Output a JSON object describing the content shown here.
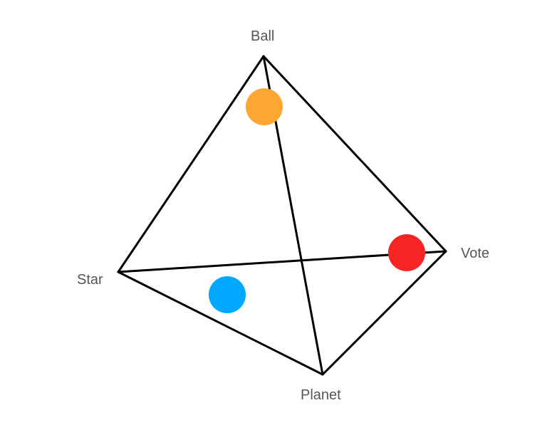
{
  "vertices": [
    {
      "id": "ball",
      "label": "Ball"
    },
    {
      "id": "vote",
      "label": "Vote"
    },
    {
      "id": "star",
      "label": "Star"
    },
    {
      "id": "planet",
      "label": "Planet"
    }
  ],
  "edges": [
    [
      "ball",
      "star"
    ],
    [
      "ball",
      "vote"
    ],
    [
      "ball",
      "planet"
    ],
    [
      "star",
      "vote"
    ],
    [
      "star",
      "planet"
    ],
    [
      "vote",
      "planet"
    ]
  ],
  "markers": [
    {
      "id": "orange-marker",
      "color": "#FBA732"
    },
    {
      "id": "red-marker",
      "color": "#F72424"
    },
    {
      "id": "blue-marker",
      "color": "#00A8FF"
    }
  ]
}
